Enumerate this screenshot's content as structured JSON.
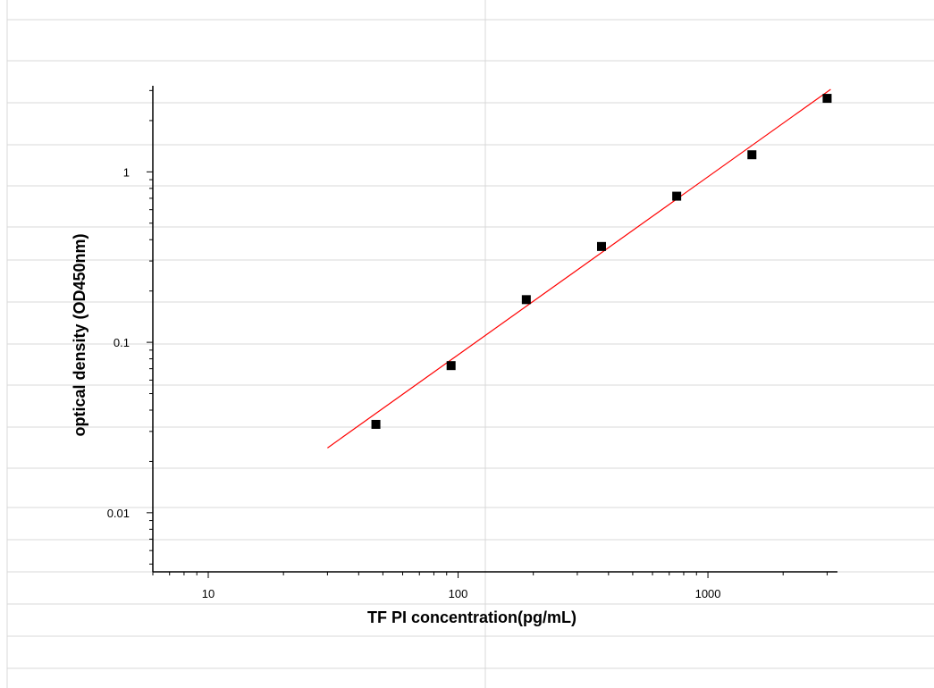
{
  "colors": {
    "background": "#ffffff",
    "spreadsheet_grid": "#d9d9d9",
    "axis": "#000000",
    "fit_line": "#ff0000",
    "points": "#000000"
  },
  "chart_data": {
    "type": "scatter",
    "title": "",
    "xlabel": "TF PI  concentration(pg/mL)",
    "ylabel": "optical density (OD450nm)",
    "xscale": "log",
    "yscale": "log",
    "xlim": [
      6,
      3300
    ],
    "ylim": [
      0.0045,
      3.2
    ],
    "x_ticks": [
      10,
      100,
      1000
    ],
    "x_tick_labels": [
      "10",
      "100",
      "1000"
    ],
    "y_ticks": [
      0.01,
      0.1,
      1
    ],
    "y_tick_labels": [
      "0.01",
      "0.1",
      "1"
    ],
    "grid": false,
    "legend": "none",
    "series": [
      {
        "type": "scatter",
        "marker": "square",
        "x": [
          46.88,
          93.75,
          187.5,
          375,
          750,
          1500,
          3000
        ],
        "y": [
          0.033,
          0.073,
          0.178,
          0.365,
          0.72,
          1.26,
          2.7
        ]
      }
    ],
    "fit_line": {
      "x": [
        30,
        3100
      ],
      "y": [
        0.024,
        3.05
      ]
    }
  }
}
